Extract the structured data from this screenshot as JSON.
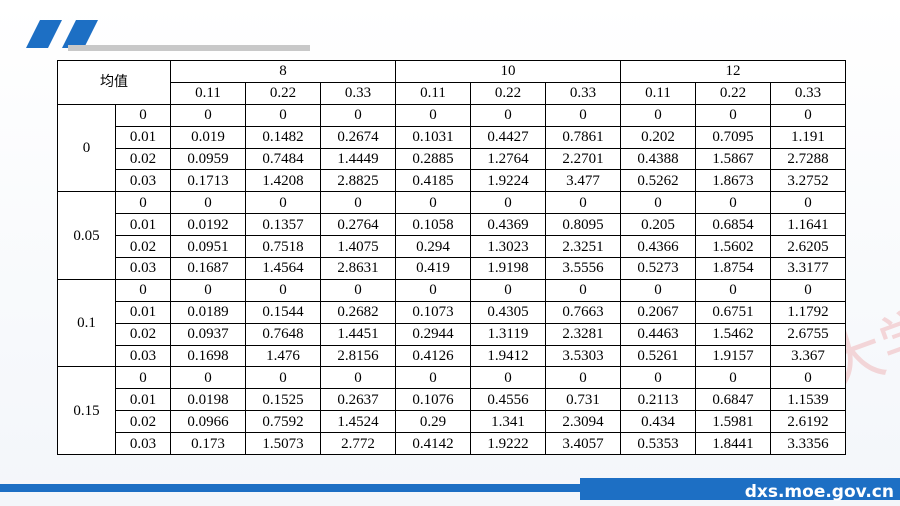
{
  "table": {
    "corner": "均值",
    "column_groups": [
      "8",
      "10",
      "12"
    ],
    "subheaders": [
      "0.11",
      "0.22",
      "0.33"
    ],
    "row_groups": [
      {
        "label": "0",
        "rows": [
          {
            "label": "0",
            "cells": [
              "0",
              "0",
              "0",
              "0",
              "0",
              "0",
              "0",
              "0",
              "0"
            ]
          },
          {
            "label": "0.01",
            "cells": [
              "0.019",
              "0.1482",
              "0.2674",
              "0.1031",
              "0.4427",
              "0.7861",
              "0.202",
              "0.7095",
              "1.191"
            ]
          },
          {
            "label": "0.02",
            "cells": [
              "0.0959",
              "0.7484",
              "1.4449",
              "0.2885",
              "1.2764",
              "2.2701",
              "0.4388",
              "1.5867",
              "2.7288"
            ]
          },
          {
            "label": "0.03",
            "cells": [
              "0.1713",
              "1.4208",
              "2.8825",
              "0.4185",
              "1.9224",
              "3.477",
              "0.5262",
              "1.8673",
              "3.2752"
            ]
          }
        ]
      },
      {
        "label": "0.05",
        "rows": [
          {
            "label": "0",
            "cells": [
              "0",
              "0",
              "0",
              "0",
              "0",
              "0",
              "0",
              "0",
              "0"
            ]
          },
          {
            "label": "0.01",
            "cells": [
              "0.0192",
              "0.1357",
              "0.2764",
              "0.1058",
              "0.4369",
              "0.8095",
              "0.205",
              "0.6854",
              "1.1641"
            ]
          },
          {
            "label": "0.02",
            "cells": [
              "0.0951",
              "0.7518",
              "1.4075",
              "0.294",
              "1.3023",
              "2.3251",
              "0.4366",
              "1.5602",
              "2.6205"
            ]
          },
          {
            "label": "0.03",
            "cells": [
              "0.1687",
              "1.4564",
              "2.8631",
              "0.419",
              "1.9198",
              "3.5556",
              "0.5273",
              "1.8754",
              "3.3177"
            ]
          }
        ]
      },
      {
        "label": "0.1",
        "rows": [
          {
            "label": "0",
            "cells": [
              "0",
              "0",
              "0",
              "0",
              "0",
              "0",
              "0",
              "0",
              "0"
            ]
          },
          {
            "label": "0.01",
            "cells": [
              "0.0189",
              "0.1544",
              "0.2682",
              "0.1073",
              "0.4305",
              "0.7663",
              "0.2067",
              "0.6751",
              "1.1792"
            ]
          },
          {
            "label": "0.02",
            "cells": [
              "0.0937",
              "0.7648",
              "1.4451",
              "0.2944",
              "1.3119",
              "2.3281",
              "0.4463",
              "1.5462",
              "2.6755"
            ]
          },
          {
            "label": "0.03",
            "cells": [
              "0.1698",
              "1.476",
              "2.8156",
              "0.4126",
              "1.9412",
              "3.5303",
              "0.5261",
              "1.9157",
              "3.367"
            ]
          }
        ]
      },
      {
        "label": "0.15",
        "rows": [
          {
            "label": "0",
            "cells": [
              "0",
              "0",
              "0",
              "0",
              "0",
              "0",
              "0",
              "0",
              "0"
            ]
          },
          {
            "label": "0.01",
            "cells": [
              "0.0198",
              "0.1525",
              "0.2637",
              "0.1076",
              "0.4556",
              "0.731",
              "0.2113",
              "0.6847",
              "1.1539"
            ]
          },
          {
            "label": "0.02",
            "cells": [
              "0.0966",
              "0.7592",
              "1.4524",
              "0.29",
              "1.341",
              "2.3094",
              "0.434",
              "1.5981",
              "2.6192"
            ]
          },
          {
            "label": "0.03",
            "cells": [
              "0.173",
              "1.5073",
              "2.772",
              "0.4142",
              "1.9222",
              "3.4057",
              "0.5353",
              "1.8441",
              "3.3356"
            ]
          }
        ]
      }
    ]
  },
  "footer": {
    "site": "dxs.moe.gov.cn"
  }
}
